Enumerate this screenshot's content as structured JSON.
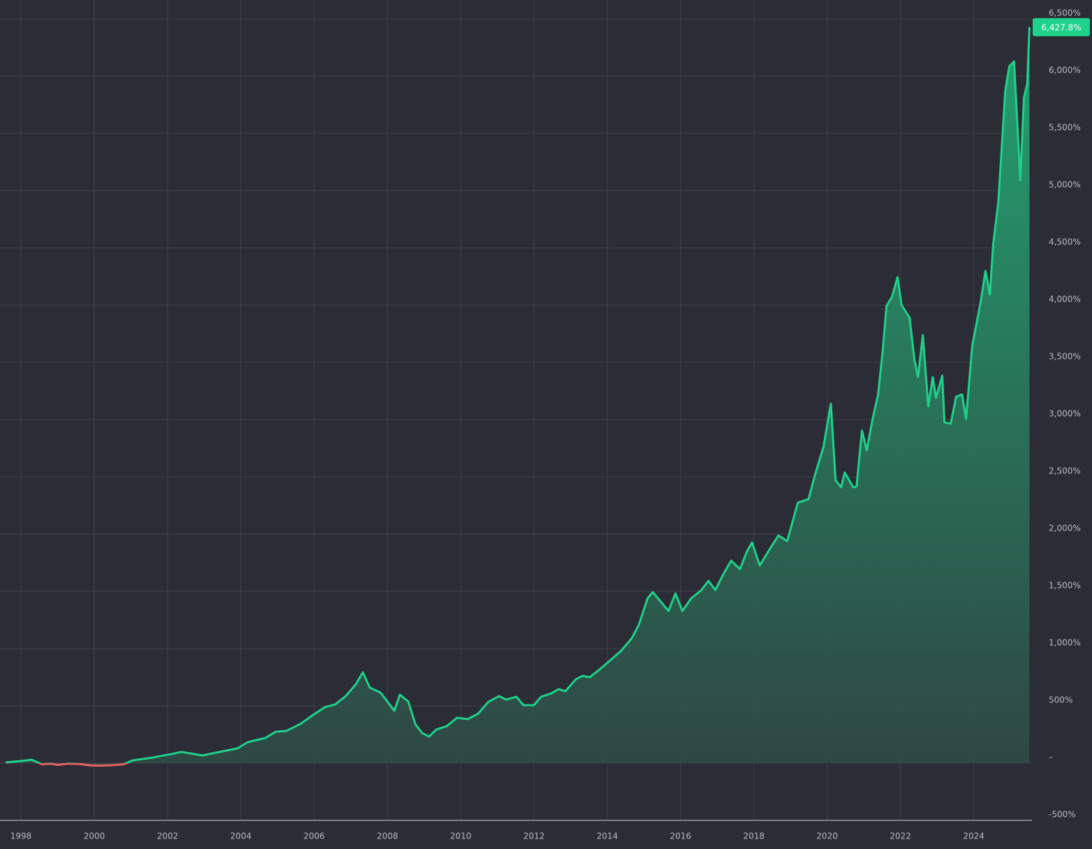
{
  "chart_data": {
    "type": "area",
    "x": [
      1997.58,
      1998.0,
      1998.29,
      1998.57,
      1998.8,
      1999.0,
      1999.3,
      1999.6,
      1999.9,
      2000.2,
      2000.5,
      2000.8,
      2001.05,
      2001.6,
      2002.1,
      2002.38,
      2002.95,
      2003.33,
      2003.9,
      2004.19,
      2004.67,
      2004.95,
      2005.24,
      2005.62,
      2006.0,
      2006.29,
      2006.57,
      2006.86,
      2007.14,
      2007.33,
      2007.52,
      2007.81,
      2008.0,
      2008.19,
      2008.34,
      2008.57,
      2008.76,
      2008.95,
      2009.14,
      2009.33,
      2009.62,
      2009.9,
      2010.19,
      2010.48,
      2010.76,
      2011.05,
      2011.24,
      2011.52,
      2011.71,
      2012.0,
      2012.19,
      2012.48,
      2012.67,
      2012.86,
      2013.14,
      2013.33,
      2013.52,
      2013.81,
      2014.1,
      2014.38,
      2014.67,
      2014.86,
      2015.1,
      2015.24,
      2015.43,
      2015.67,
      2015.86,
      2016.05,
      2016.29,
      2016.57,
      2016.76,
      2016.95,
      2017.14,
      2017.38,
      2017.62,
      2017.81,
      2017.95,
      2018.16,
      2018.45,
      2018.67,
      2018.91,
      2019.2,
      2019.49,
      2019.68,
      2019.9,
      2020.1,
      2020.23,
      2020.38,
      2020.48,
      2020.71,
      2020.8,
      2020.95,
      2021.08,
      2021.24,
      2021.39,
      2021.52,
      2021.62,
      2021.77,
      2021.92,
      2022.03,
      2022.25,
      2022.38,
      2022.48,
      2022.61,
      2022.76,
      2022.88,
      2022.97,
      2023.14,
      2023.2,
      2023.37,
      2023.52,
      2023.68,
      2023.79,
      2023.96,
      2024.19,
      2024.32,
      2024.44,
      2024.53,
      2024.67,
      2024.86,
      2024.97,
      2025.1,
      2025.27,
      2025.37,
      2025.46,
      2025.52
    ],
    "series": [
      {
        "color": "#1ed28a",
        "negative_color": "#e8605f",
        "values": [
          6,
          18,
          30,
          -10,
          -5,
          -15,
          -5,
          -8,
          -20,
          -22,
          -18,
          -10,
          24,
          49,
          79,
          98,
          67,
          92,
          128,
          183,
          220,
          274,
          281,
          341,
          427,
          488,
          512,
          585,
          689,
          793,
          659,
          616,
          537,
          457,
          598,
          537,
          341,
          262,
          232,
          293,
          323,
          396,
          384,
          433,
          537,
          585,
          555,
          579,
          506,
          506,
          579,
          610,
          646,
          628,
          732,
          762,
          750,
          823,
          903,
          982,
          1092,
          1207,
          1439,
          1494,
          1421,
          1329,
          1482,
          1329,
          1439,
          1512,
          1592,
          1512,
          1634,
          1768,
          1695,
          1848,
          1927,
          1726,
          1878,
          1988,
          1939,
          2275,
          2305,
          2531,
          2762,
          3140,
          2470,
          2409,
          2537,
          2409,
          2415,
          2903,
          2732,
          3006,
          3220,
          3616,
          3994,
          4073,
          4244,
          4000,
          3890,
          3525,
          3372,
          3738,
          3116,
          3372,
          3189,
          3384,
          2976,
          2964,
          3201,
          3220,
          3006,
          3647,
          4031,
          4299,
          4092,
          4531,
          4897,
          5872,
          6086,
          6128,
          5092,
          5811,
          5933,
          6427.8
        ]
      }
    ],
    "annotation": {
      "value": 6427.8,
      "label": "6,427.8%"
    },
    "xlim": [
      1997.58,
      2025.55
    ],
    "xticks": [
      1998,
      2000,
      2002,
      2004,
      2006,
      2008,
      2010,
      2012,
      2014,
      2016,
      2018,
      2020,
      2022,
      2024
    ],
    "ylim": [
      -500,
      6500
    ],
    "yticks": [
      {
        "value": -500,
        "label": "-500%"
      },
      {
        "value": 0,
        "label": "–"
      },
      {
        "value": 500,
        "label": "500%"
      },
      {
        "value": 1000,
        "label": "1,000%"
      },
      {
        "value": 1500,
        "label": "1,500%"
      },
      {
        "value": 2000,
        "label": "2,000%"
      },
      {
        "value": 2500,
        "label": "2,500%"
      },
      {
        "value": 3000,
        "label": "3,000%"
      },
      {
        "value": 3500,
        "label": "3,500%"
      },
      {
        "value": 4000,
        "label": "4,000%"
      },
      {
        "value": 4500,
        "label": "4,500%"
      },
      {
        "value": 5000,
        "label": "5,000%"
      },
      {
        "value": 5500,
        "label": "5,500%"
      },
      {
        "value": 6000,
        "label": "6,000%"
      },
      {
        "value": 6500,
        "label": "6,500%"
      }
    ],
    "grid": true
  }
}
